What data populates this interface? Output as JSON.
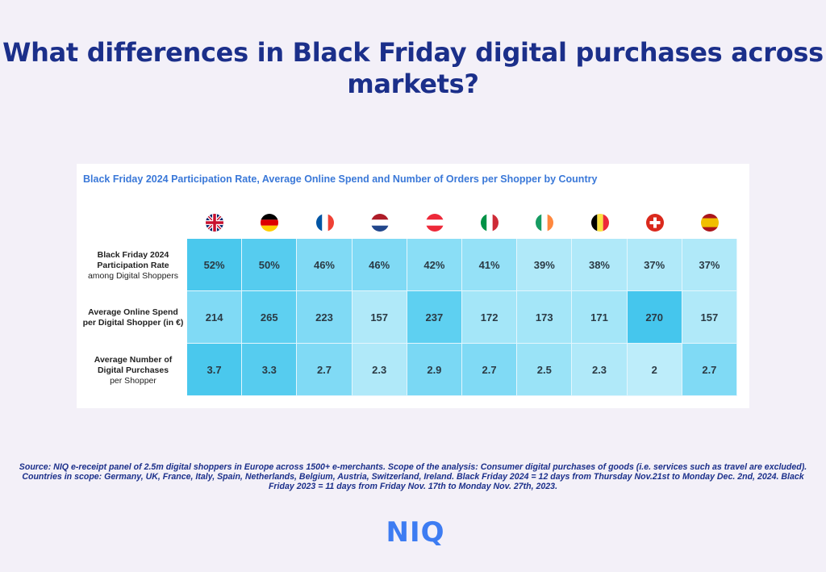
{
  "title": "What differences in Black Friday digital purchases across markets?",
  "chart_data": {
    "type": "table",
    "title": "Black Friday 2024 Participation Rate, Average Online Spend and Number of Orders per Shopper by Country",
    "columns": [
      {
        "country": "UK",
        "flag": "uk-flag-icon"
      },
      {
        "country": "Germany",
        "flag": "germany-flag-icon"
      },
      {
        "country": "France",
        "flag": "france-flag-icon"
      },
      {
        "country": "Netherlands",
        "flag": "netherlands-flag-icon"
      },
      {
        "country": "Austria",
        "flag": "austria-flag-icon"
      },
      {
        "country": "Italy",
        "flag": "italy-flag-icon"
      },
      {
        "country": "Ireland",
        "flag": "ireland-flag-icon"
      },
      {
        "country": "Belgium",
        "flag": "belgium-flag-icon"
      },
      {
        "country": "Switzerland",
        "flag": "switzerland-flag-icon"
      },
      {
        "country": "Spain",
        "flag": "spain-flag-icon"
      }
    ],
    "rows": [
      {
        "label_bold_1": "Black Friday 2024",
        "label_bold_2": "Participation Rate",
        "label_normal": "among Digital Shoppers",
        "display": [
          "52%",
          "50%",
          "46%",
          "46%",
          "42%",
          "41%",
          "39%",
          "38%",
          "37%",
          "37%"
        ],
        "values": [
          52,
          50,
          46,
          46,
          42,
          41,
          39,
          38,
          37,
          37
        ],
        "colors": [
          "#4ac8ed",
          "#56ccef",
          "#80daf5",
          "#80daf5",
          "#8adef6",
          "#95e1f7",
          "#b0e9f9",
          "#b0e9f9",
          "#b0e9f9",
          "#b0e9f9"
        ]
      },
      {
        "label_bold_1": "Average Online Spend",
        "label_bold_2": "per Digital Shopper (in €)",
        "label_normal": "",
        "display": [
          "214",
          "265",
          "223",
          "157",
          "237",
          "172",
          "173",
          "171",
          "270",
          "157"
        ],
        "values": [
          214,
          265,
          223,
          157,
          237,
          172,
          173,
          171,
          270,
          157
        ],
        "colors": [
          "#80daf5",
          "#5ed0f1",
          "#80daf5",
          "#b0e9f9",
          "#5ed0f1",
          "#a4e6f8",
          "#a4e6f8",
          "#a4e6f8",
          "#45c6ed",
          "#b0e9f9"
        ]
      },
      {
        "label_bold_1": "Average Number of",
        "label_bold_2": "Digital Purchases",
        "label_normal": "per Shopper",
        "display": [
          "3.7",
          "3.3",
          "2.7",
          "2.3",
          "2.9",
          "2.7",
          "2.5",
          "2.3",
          "2",
          "2.7"
        ],
        "values": [
          3.7,
          3.3,
          2.7,
          2.3,
          2.9,
          2.7,
          2.5,
          2.3,
          2,
          2.7
        ],
        "colors": [
          "#4ac8ed",
          "#56ccef",
          "#80daf5",
          "#b0e9f9",
          "#7ad8f4",
          "#80daf5",
          "#9ae3f7",
          "#b0e9f9",
          "#bdedfa",
          "#80daf5"
        ]
      }
    ]
  },
  "source": "Source: NIQ e-receipt panel of 2.5m digital shoppers in Europe across 1500+ e-merchants. Scope of the analysis: Consumer digital purchases of goods (i.e. services such as travel are excluded). Countries in scope: Germany, UK, France, Italy, Spain, Netherlands, Belgium, Austria, Switzerland, Ireland. Black Friday 2024 = 12 days from Thursday Nov.21st to Monday Dec. 2nd, 2024. Black Friday 2023 = 11 days from Friday Nov. 17th to Monday Nov. 27th, 2023.",
  "logo": "NIQ"
}
